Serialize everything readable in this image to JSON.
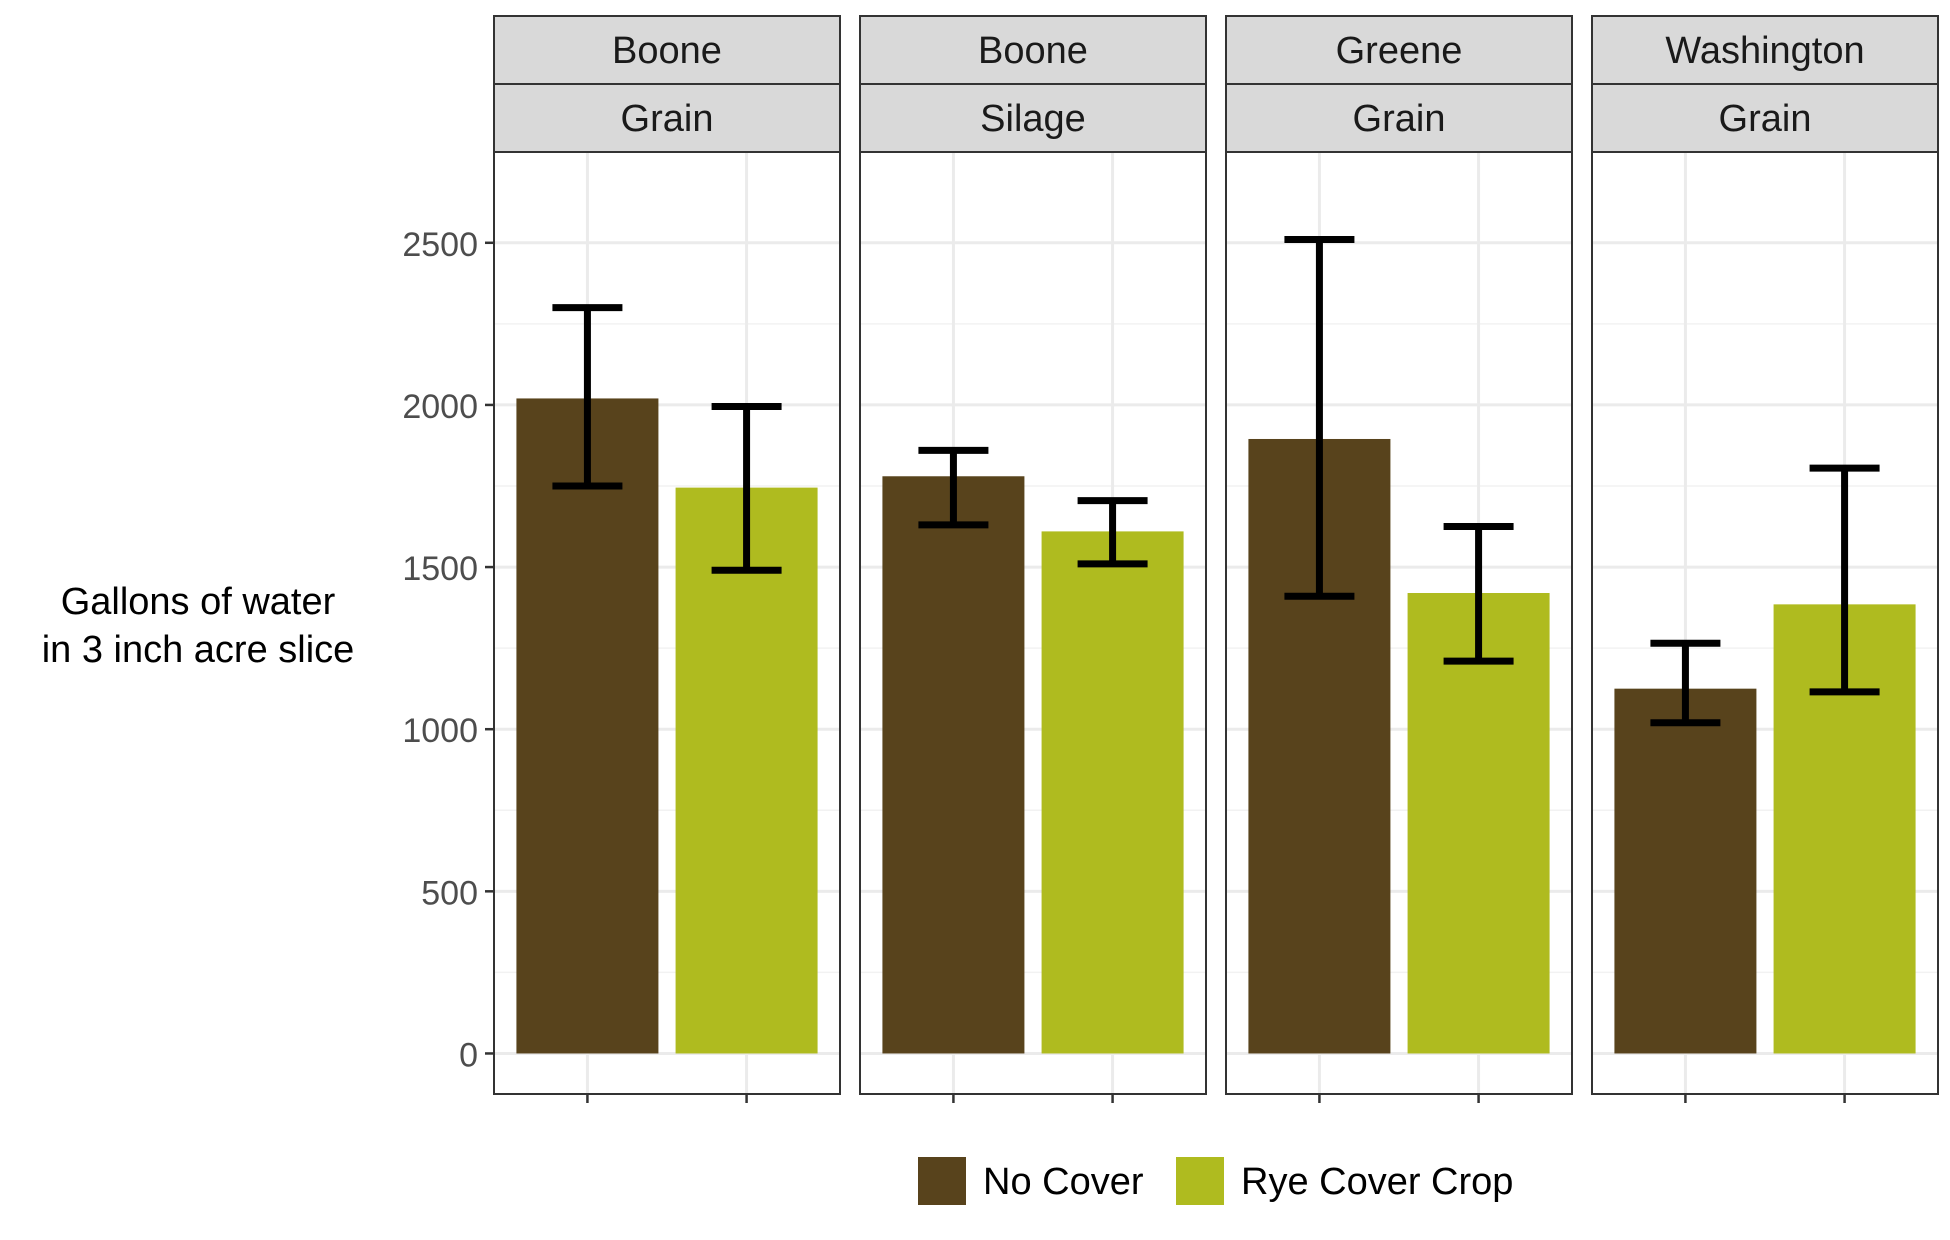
{
  "chart_data": {
    "type": "bar",
    "ylabel_lines": [
      "Gallons of water",
      "in 3 inch acre slice"
    ],
    "ylim": [
      -125,
      2780
    ],
    "yticks": [
      0,
      500,
      1000,
      1500,
      2000,
      2500
    ],
    "grid": true,
    "legend_position": "bottom",
    "legend": [
      {
        "name": "No Cover",
        "color": "#58431c"
      },
      {
        "name": "Rye Cover Crop",
        "color": "#afbb1f"
      }
    ],
    "facets": [
      {
        "strip": [
          "Boone",
          "Grain"
        ],
        "bars": [
          {
            "series": "No Cover",
            "value": 2020,
            "err_low": 1750,
            "err_high": 2300
          },
          {
            "series": "Rye Cover Crop",
            "value": 1745,
            "err_low": 1490,
            "err_high": 1995
          }
        ]
      },
      {
        "strip": [
          "Boone",
          "Silage"
        ],
        "bars": [
          {
            "series": "No Cover",
            "value": 1780,
            "err_low": 1630,
            "err_high": 1860
          },
          {
            "series": "Rye Cover Crop",
            "value": 1610,
            "err_low": 1510,
            "err_high": 1705
          }
        ]
      },
      {
        "strip": [
          "Greene",
          "Grain"
        ],
        "bars": [
          {
            "series": "No Cover",
            "value": 1895,
            "err_low": 1410,
            "err_high": 2510
          },
          {
            "series": "Rye Cover Crop",
            "value": 1420,
            "err_low": 1210,
            "err_high": 1625
          }
        ]
      },
      {
        "strip": [
          "Washington",
          "Grain"
        ],
        "bars": [
          {
            "series": "No Cover",
            "value": 1125,
            "err_low": 1020,
            "err_high": 1265
          },
          {
            "series": "Rye Cover Crop",
            "value": 1385,
            "err_low": 1115,
            "err_high": 1805
          }
        ]
      }
    ]
  }
}
